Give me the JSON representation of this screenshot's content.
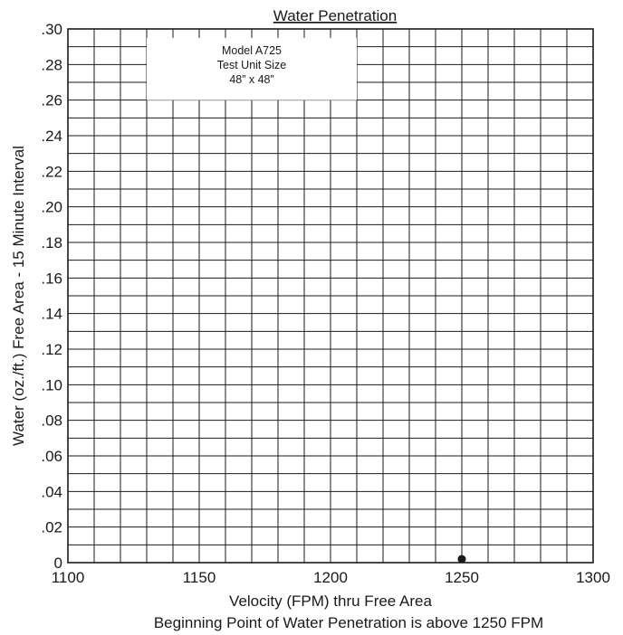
{
  "chart_data": {
    "type": "scatter",
    "title": "Water Penetration",
    "xlabel": "Velocity (FPM) thru Free Area",
    "ylabel": "Water (oz./ft.) Free Area - 15 Minute Interval",
    "note": "Beginning Point of Water Penetration is above 1250 FPM",
    "annotation": [
      "Model A725",
      "Test Unit Size",
      "48” x 48”"
    ],
    "xlim": [
      1100,
      1300
    ],
    "ylim": [
      0,
      0.3
    ],
    "x_tick_labels": [
      "1100",
      "1150",
      "1200",
      "1250",
      "1300"
    ],
    "y_tick_labels": [
      "0",
      ".02",
      ".04",
      ".06",
      ".08",
      ".10",
      ".12",
      ".14",
      ".16",
      ".18",
      ".20",
      ".22",
      ".24",
      ".26",
      ".28",
      ".30"
    ],
    "grid": true,
    "series": [
      {
        "x": [
          1250
        ],
        "y": [
          0.002
        ]
      }
    ]
  }
}
